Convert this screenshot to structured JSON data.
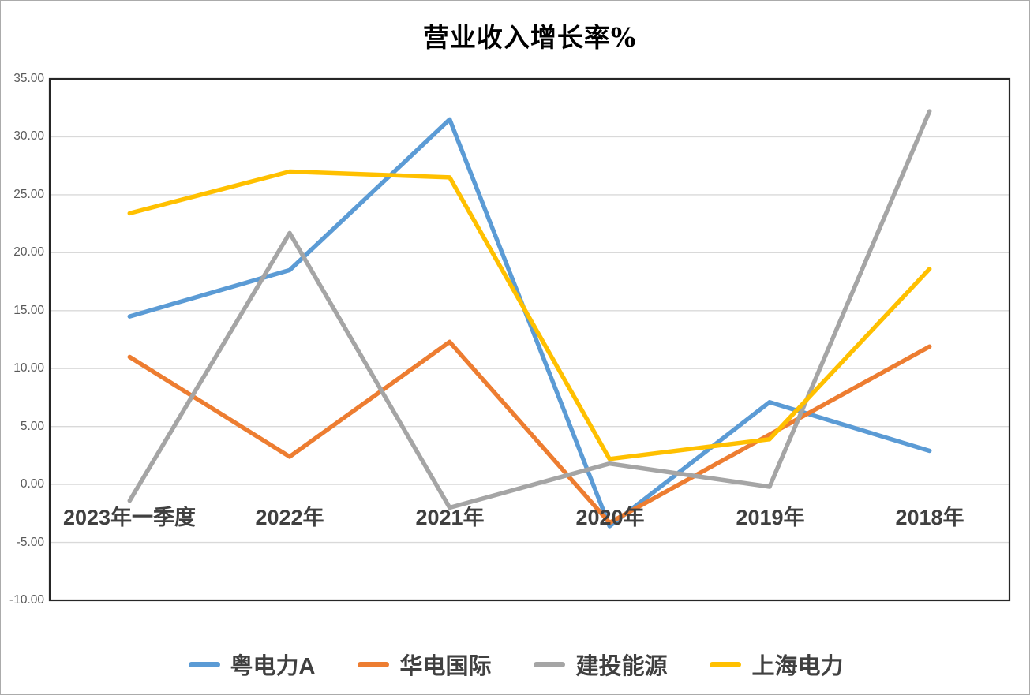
{
  "chart_data": {
    "type": "line",
    "title": "营业收入增长率%",
    "categories": [
      "2023年一季度",
      "2022年",
      "2021年",
      "2020年",
      "2019年",
      "2018年"
    ],
    "series": [
      {
        "name": "粤电力A",
        "color": "#5B9BD5",
        "values": [
          14.5,
          18.5,
          31.5,
          -3.6,
          7.1,
          2.9
        ]
      },
      {
        "name": "华电国际",
        "color": "#ED7D31",
        "values": [
          11.0,
          2.4,
          12.3,
          -3.3,
          4.3,
          11.9
        ]
      },
      {
        "name": "建投能源",
        "color": "#A5A5A5",
        "values": [
          -1.4,
          21.7,
          -2.0,
          1.8,
          -0.2,
          32.2
        ]
      },
      {
        "name": "上海电力",
        "color": "#FFC000",
        "values": [
          23.4,
          27.0,
          26.5,
          2.2,
          3.9,
          18.6
        ]
      }
    ],
    "ylim": [
      -10,
      35
    ],
    "ystep": 5,
    "ytick_labels": [
      "35.00",
      "30.00",
      "25.00",
      "20.00",
      "15.00",
      "10.00",
      "5.00",
      "0.00",
      "-5.00",
      "-10.00"
    ],
    "grid": true,
    "legend_position": "bottom",
    "colors": {
      "gridline": "#D9D9D9",
      "plot_border": "#262626",
      "axis_text": "#595959",
      "label_text": "#404040"
    }
  }
}
